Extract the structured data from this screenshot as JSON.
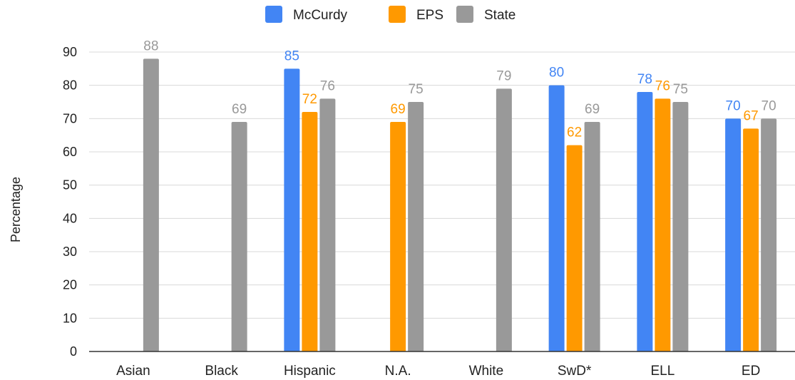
{
  "chart_data": {
    "type": "bar",
    "title": "",
    "xlabel": "",
    "ylabel": "Percentage",
    "ylim": [
      0,
      90
    ],
    "yticks": [
      0,
      10,
      20,
      30,
      40,
      50,
      60,
      70,
      80,
      90
    ],
    "grid": true,
    "legend_position": "top-center",
    "categories": [
      "Asian",
      "Black",
      "Hispanic",
      "N.A.",
      "White",
      "SwD*",
      "ELL",
      "ED"
    ],
    "series": [
      {
        "name": "McCurdy",
        "color": "#4285f4",
        "values": [
          null,
          null,
          85,
          null,
          null,
          80,
          78,
          70
        ]
      },
      {
        "name": "EPS",
        "color": "#ff9900",
        "values": [
          null,
          null,
          72,
          69,
          null,
          62,
          76,
          67
        ]
      },
      {
        "name": "State",
        "color": "#999999",
        "values": [
          88,
          69,
          76,
          75,
          79,
          69,
          75,
          70
        ]
      }
    ]
  }
}
